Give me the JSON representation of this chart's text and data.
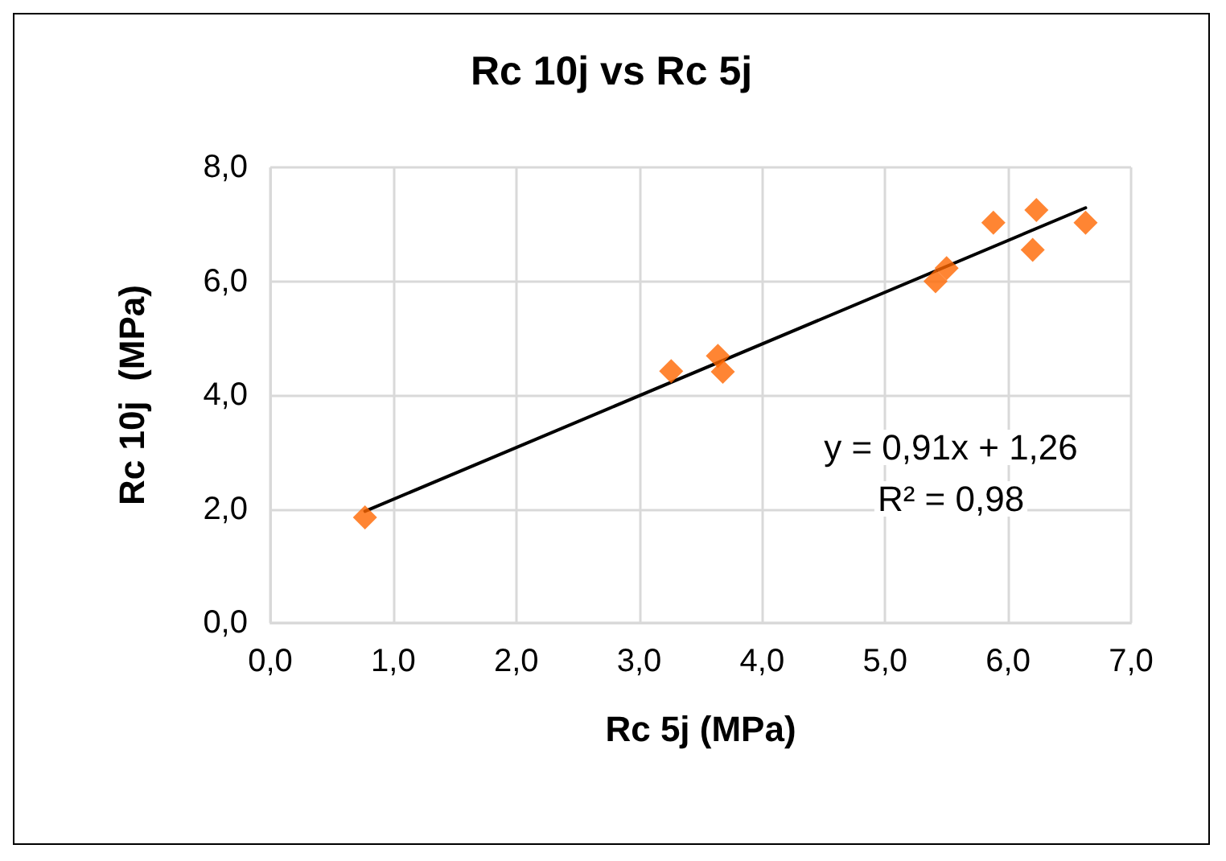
{
  "chart_data": {
    "type": "scatter",
    "title": "Rc 10j vs Rc 5j",
    "xlabel": "Rc 5j (MPa)",
    "ylabel": "Rc 10j  (MPa)",
    "series": [
      {
        "color": "#ff6600",
        "marker": "diamond",
        "x": [
          0.77,
          3.26,
          3.64,
          3.68,
          5.41,
          5.5,
          5.88,
          6.2,
          6.23,
          6.63
        ],
        "values": [
          1.85,
          4.42,
          4.69,
          4.41,
          6.0,
          6.23,
          7.03,
          6.55,
          7.25,
          7.03
        ]
      },
      {
        "type": "line",
        "color": "#000000",
        "marker": "none",
        "line_style": "solid",
        "x": [
          0.77,
          6.63
        ],
        "values": [
          1.96,
          7.29
        ]
      }
    ],
    "annotations": [
      "y = 0,91x + 1,26",
      "R² = 0,98"
    ],
    "xlim": [
      0,
      7
    ],
    "xticks": [
      {
        "value": 0,
        "label": "0,0"
      },
      {
        "value": 1,
        "label": "1,0"
      },
      {
        "value": 2,
        "label": "2,0"
      },
      {
        "value": 3,
        "label": "3,0"
      },
      {
        "value": 4,
        "label": "4,0"
      },
      {
        "value": 5,
        "label": "5,0"
      },
      {
        "value": 6,
        "label": "6,0"
      },
      {
        "value": 7,
        "label": "7,0"
      }
    ],
    "ylim": [
      0,
      8
    ],
    "yticks": [
      {
        "value": 0,
        "label": "0,0"
      },
      {
        "value": 2,
        "label": "2,0"
      },
      {
        "value": 4,
        "label": "4,0"
      },
      {
        "value": 6,
        "label": "6,0"
      },
      {
        "value": 8,
        "label": "8,0"
      }
    ],
    "grid": true
  }
}
